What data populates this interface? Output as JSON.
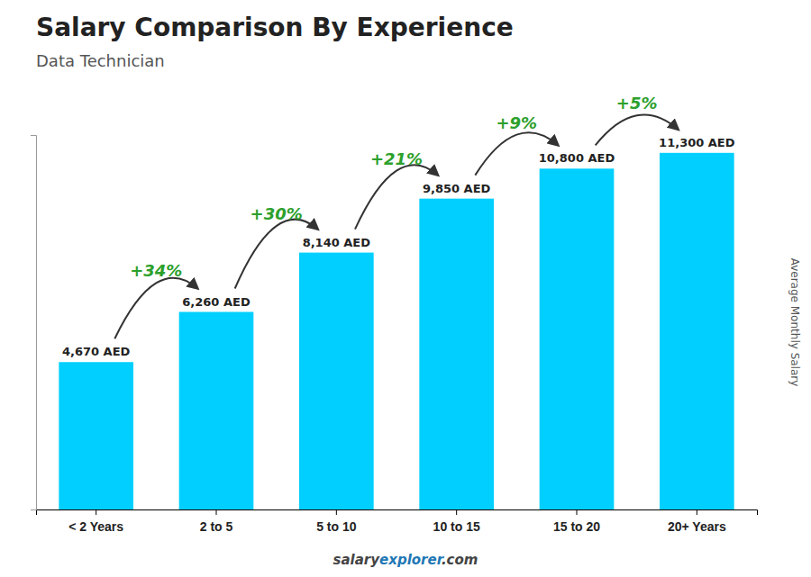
{
  "chart_data": {
    "type": "bar",
    "title": "Salary Comparison By Experience",
    "subtitle": "Data Technician",
    "ylabel": "Average Monthly Salary",
    "categories": [
      "< 2 Years",
      "2 to 5",
      "5 to 10",
      "10 to 15",
      "15 to 20",
      "20+ Years"
    ],
    "values": [
      4670,
      6260,
      8140,
      9850,
      10800,
      11300
    ],
    "value_labels": [
      "4,670 AED",
      "6,260 AED",
      "8,140 AED",
      "9,850 AED",
      "10,800 AED",
      "11,300 AED"
    ],
    "data_labels": true,
    "color": "#00cfff",
    "ylim": [
      0,
      11865
    ],
    "tick_labels": "x",
    "annotations": [
      "+34%",
      "+30%",
      "+21%",
      "+9%",
      "+5%"
    ],
    "watermark": [
      "salary",
      "explorer",
      ".com"
    ]
  }
}
